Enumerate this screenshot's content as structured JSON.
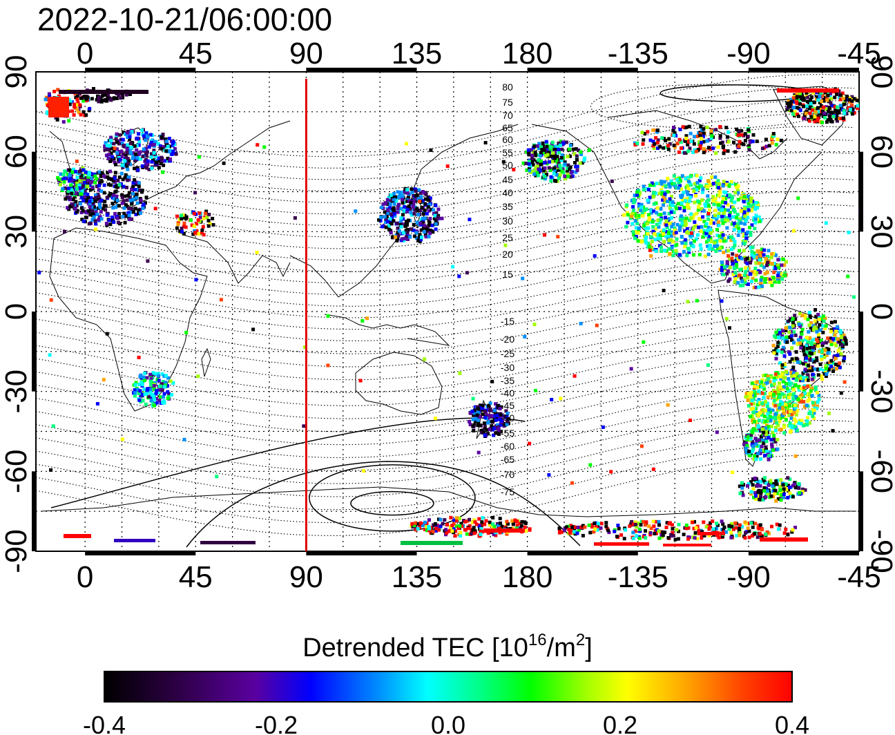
{
  "timestamp": "2022-10-21/06:00:00",
  "map": {
    "lon_ticks_top": [
      "0",
      "45",
      "90",
      "135",
      "180",
      "-135",
      "-90",
      "-45"
    ],
    "lon_ticks_bottom": [
      "0",
      "45",
      "90",
      "135",
      "180",
      "-135",
      "-90",
      "-45"
    ],
    "lat_ticks_left": [
      "90",
      "60",
      "30",
      "0",
      "-30",
      "-60",
      "-90"
    ],
    "lat_ticks_right": [
      "90",
      "60",
      "30",
      "0",
      "-30",
      "-60",
      "-90"
    ],
    "lon_tick_values": [
      0,
      45,
      90,
      135,
      180,
      225,
      270,
      315
    ],
    "lat_tick_values": [
      90,
      60,
      30,
      0,
      -30,
      -60,
      -90
    ],
    "lon_range": [
      -20,
      315
    ],
    "lat_range": [
      -90,
      90
    ],
    "marker_line_lon": 90,
    "marker_line_color": "#e00000",
    "geomagnetic_contour_labels": [
      "80",
      "75",
      "70",
      "65",
      "60",
      "55",
      "50",
      "45",
      "40",
      "35",
      "30",
      "25",
      "20",
      "15",
      "-15",
      "-20",
      "-25",
      "-30",
      "-35",
      "-40",
      "-45",
      "-50",
      "-55",
      "-60",
      "-65",
      "-70",
      "-75"
    ],
    "grid": true
  },
  "colorbar": {
    "title_main": "Detrended TEC  [10",
    "title_sup1": "16",
    "title_mid": "/m",
    "title_sup2": "2",
    "title_end": "]",
    "tick_labels": [
      "-0.4",
      "-0.2",
      "0.0",
      "0.2",
      "0.4"
    ],
    "tick_values": [
      -0.4,
      -0.2,
      0.0,
      0.2,
      0.4
    ],
    "range": [
      -0.4,
      0.4
    ],
    "colors": [
      "#000000",
      "#3a0050",
      "#5a00a0",
      "#0000ff",
      "#0090ff",
      "#00ffff",
      "#00ff80",
      "#00ff00",
      "#a0ff00",
      "#ffff00",
      "#ffa000",
      "#ff4000",
      "#ff0000"
    ]
  }
}
